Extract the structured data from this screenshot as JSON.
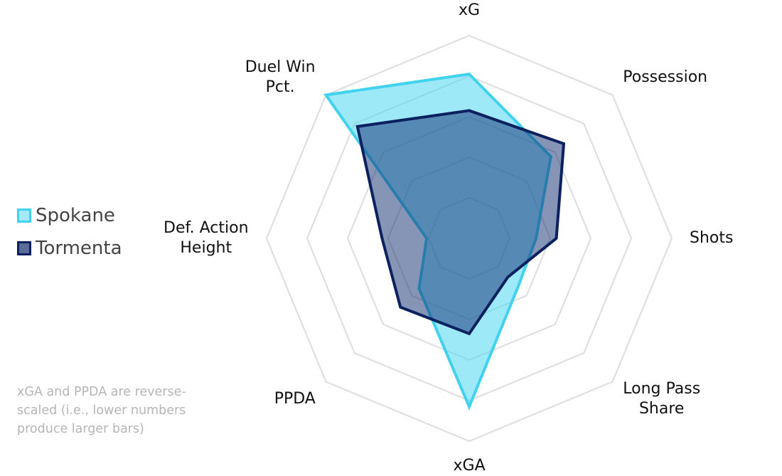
{
  "chart_data": {
    "type": "radar",
    "axes": [
      "xG",
      "Possession",
      "Shots",
      "Long Pass Share",
      "xGA",
      "PPDA",
      "Def. Action Height",
      "Duel Win Pct."
    ],
    "axis_label_lines": [
      [
        "xG"
      ],
      [
        "Possession"
      ],
      [
        "Shots"
      ],
      [
        "Long Pass",
        "Share"
      ],
      [
        "xGA"
      ],
      [
        "PPDA"
      ],
      [
        "Def. Action",
        "Height"
      ],
      [
        "Duel Win",
        "Pct."
      ]
    ],
    "rings": 5,
    "range": [
      0,
      100
    ],
    "grid": true,
    "legend_position": "left",
    "series": [
      {
        "name": "Spokane",
        "values": [
          81,
          57,
          33,
          34,
          83,
          35,
          21,
          100
        ],
        "fill": "#4fd7f2",
        "fill_opacity": 0.55,
        "stroke": "#40d2ee"
      },
      {
        "name": "Tormenta",
        "values": [
          63,
          66,
          43,
          27,
          47,
          48,
          43,
          78
        ],
        "fill": "#0e2a6e",
        "fill_opacity": 0.5,
        "stroke": "#0c2260"
      }
    ],
    "note": "xGA and PPDA are reverse-scaled (i.e., lower numbers produce larger bars)"
  }
}
